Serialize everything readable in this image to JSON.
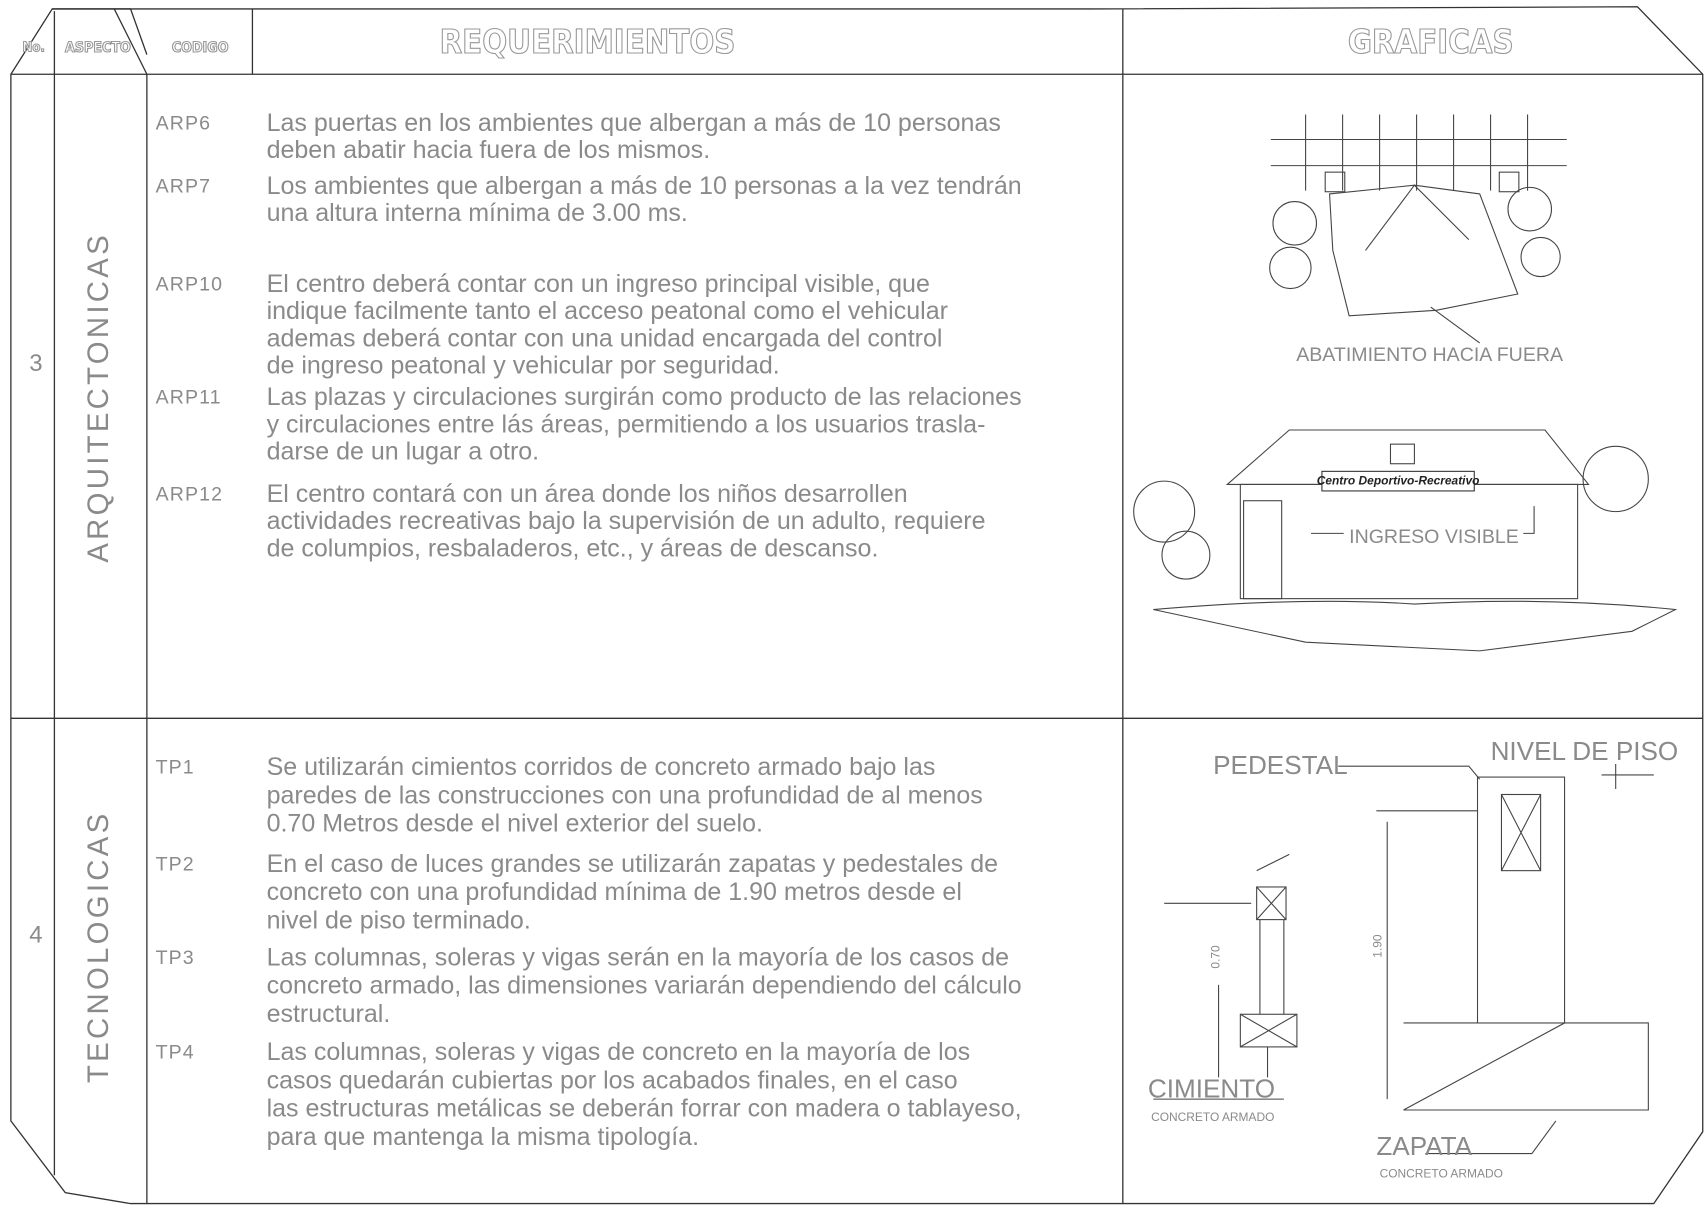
{
  "header": {
    "no": "No.",
    "aspect": "ASPECTO",
    "code": "CODIGO",
    "requirements": "REQUERIMIENTOS",
    "graphics": "GRAFICAS"
  },
  "sections": [
    {
      "number": "3",
      "aspect": "ARQUITECTONICAS",
      "items": [
        {
          "code": "ARP6",
          "lines": [
            "Las puertas en los ambientes que albergan a más de 10 personas",
            "deben abatir hacia fuera de los mismos."
          ]
        },
        {
          "code": "ARP7",
          "lines": [
            "Los ambientes que albergan a más de 10 personas a la vez tendrán",
            "una altura interna mínima de 3.00 ms."
          ]
        },
        {
          "code": "ARP10",
          "lines": [
            "El centro deberá contar con un ingreso principal visible, que",
            "indique facilmente tanto el acceso peatonal como el vehicular",
            "ademas deberá contar con una unidad encargada del control",
            "de ingreso peatonal y vehicular por seguridad."
          ]
        },
        {
          "code": "ARP11",
          "lines": [
            "Las plazas y circulaciones surgirán como producto de las relaciones",
            "y circulaciones entre lás áreas, permitiendo a los usuarios trasla-",
            "darse de un lugar a otro."
          ]
        },
        {
          "code": "ARP12",
          "lines": [
            "El centro contará con un área donde los niños desarrollen",
            "actividades recreativas bajo la supervisión de un adulto, requiere",
            "de columpios, resbaladeros, etc., y áreas de descanso."
          ]
        }
      ],
      "graphics": {
        "door_label": "ABATIMIENTO HACIA FUERA",
        "sign": "Centro Deportivo-Recreativo",
        "entry_label": "INGRESO VISIBLE"
      }
    },
    {
      "number": "4",
      "aspect": "TECNOLOGICAS",
      "items": [
        {
          "code": "TP1",
          "lines": [
            "Se utilizarán cimientos corridos de concreto armado bajo las",
            "paredes de las construcciones con una profundidad de al menos",
            "0.70  Metros desde el nivel exterior del suelo."
          ]
        },
        {
          "code": "TP2",
          "lines": [
            "En el caso de luces grandes se utilizarán zapatas y pedestales de",
            "concreto con una profundidad mínima de 1.90 metros desde el",
            "nivel de piso terminado."
          ]
        },
        {
          "code": "TP3",
          "lines": [
            "Las columnas, soleras y vigas serán en la mayoría de los casos de",
            "concreto armado, las dimensiones variarán dependiendo del cálculo",
            "estructural."
          ]
        },
        {
          "code": "TP4",
          "lines": [
            "Las columnas, soleras y vigas de concreto en la mayoría de los",
            "casos quedarán cubiertas por los acabados finales, en el caso",
            "las estructuras metálicas se deberán forrar con madera o tablayeso,",
            "para que mantenga la misma tipología."
          ]
        }
      ],
      "graphics": {
        "pedestal": "PEDESTAL",
        "floor_level": "NIVEL DE PISO",
        "foundation": "CIMIENTO",
        "foundation_material": "CONCRETO ARMADO",
        "footing": "ZAPATA",
        "footing_material": "CONCRETO ARMADO",
        "depth_small": "0.70",
        "depth_large": "1.90"
      }
    }
  ]
}
